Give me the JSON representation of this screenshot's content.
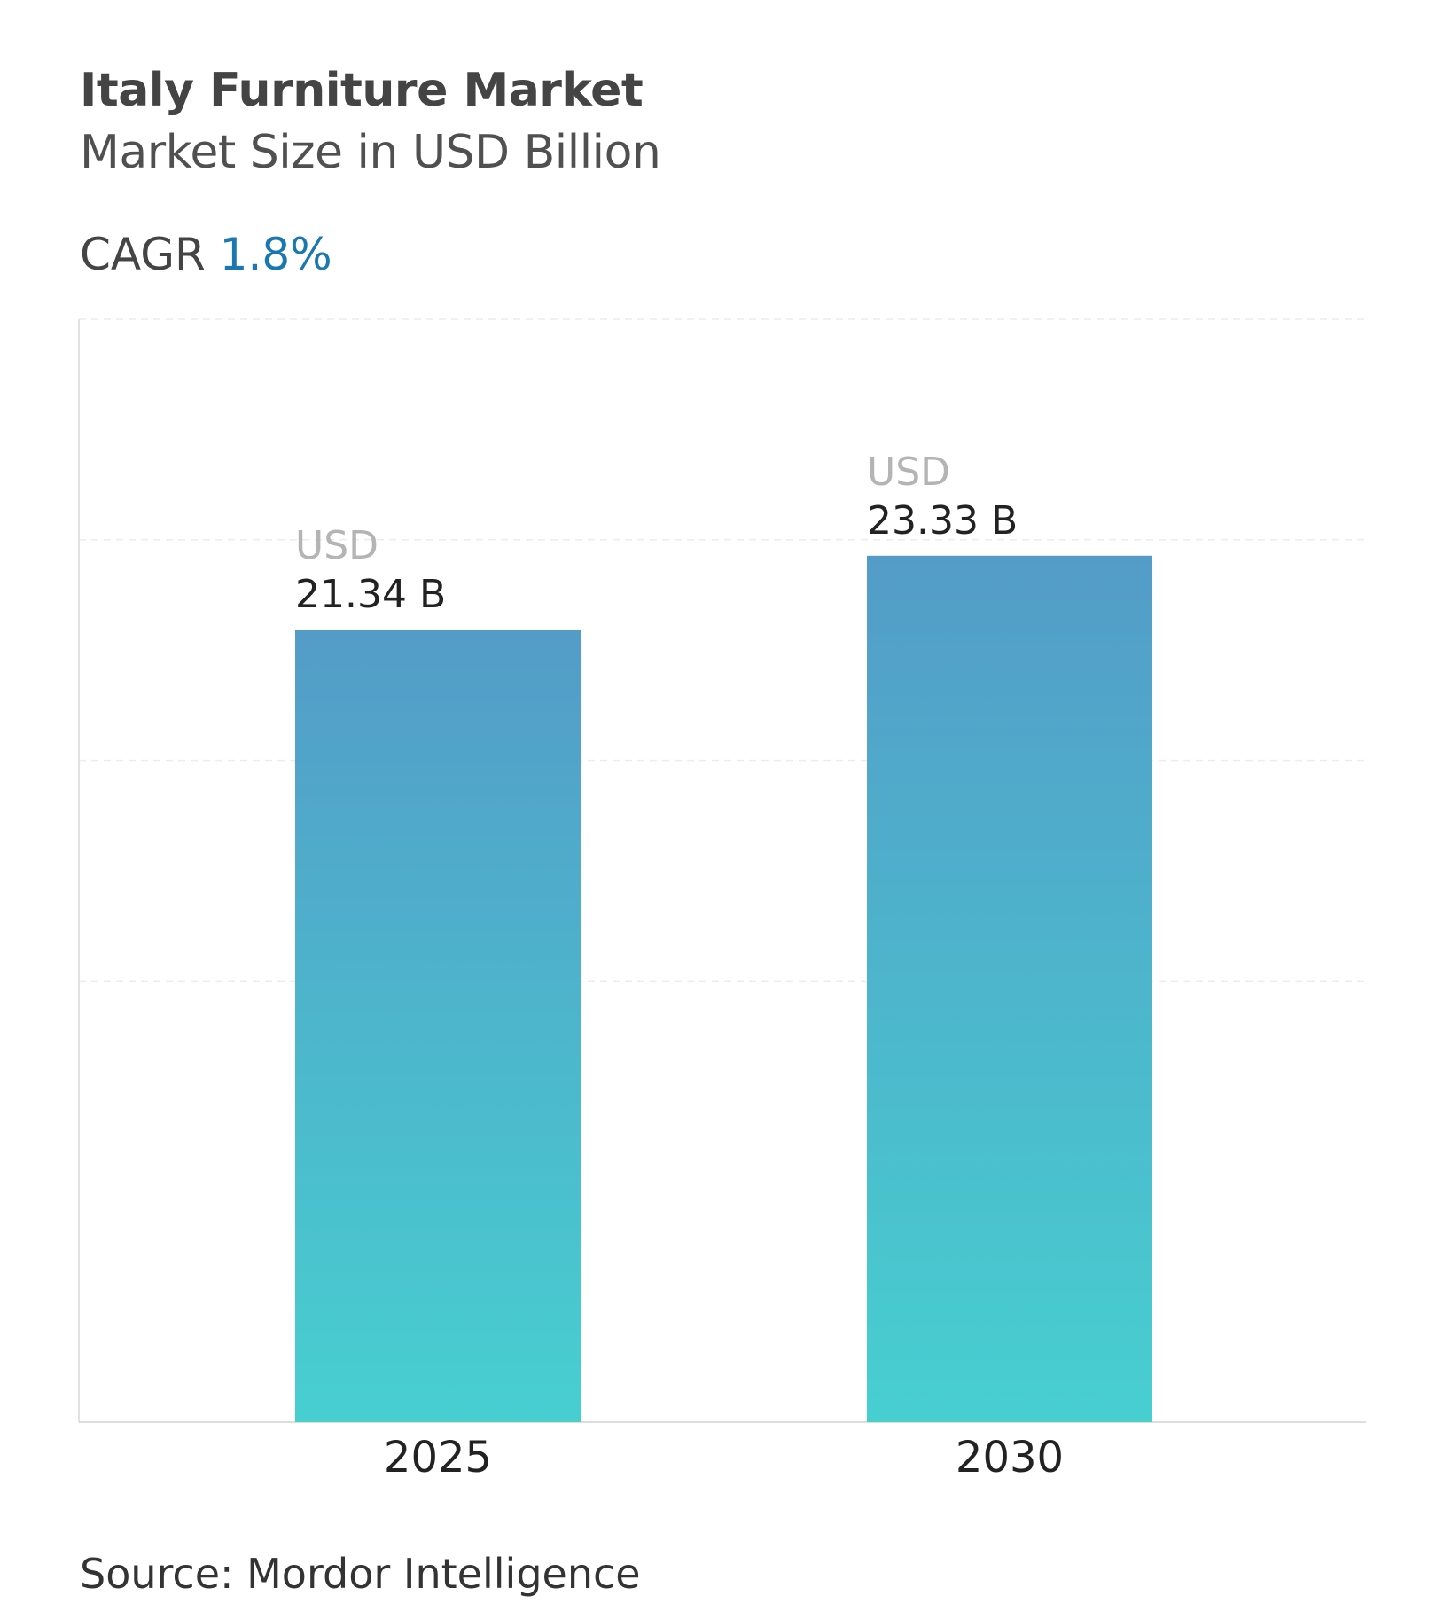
{
  "chart_data": {
    "type": "bar",
    "title": "Italy Furniture Market",
    "subtitle": "Market Size in USD Billion",
    "cagr_label": "CAGR",
    "cagr_value": "1.8%",
    "categories": [
      "2025",
      "2030"
    ],
    "values": [
      21.34,
      23.33
    ],
    "data_labels": [
      {
        "unit": "USD",
        "value": "21.34 B"
      },
      {
        "unit": "USD",
        "value": "23.33 B"
      }
    ],
    "ylim": [
      0,
      29.7
    ],
    "grid": true,
    "colors": {
      "bar_top": "#539cc8",
      "bar_bottom": "#47cfd0",
      "cagr": "#1a78b0"
    },
    "source": "Source: Mordor Intelligence"
  }
}
